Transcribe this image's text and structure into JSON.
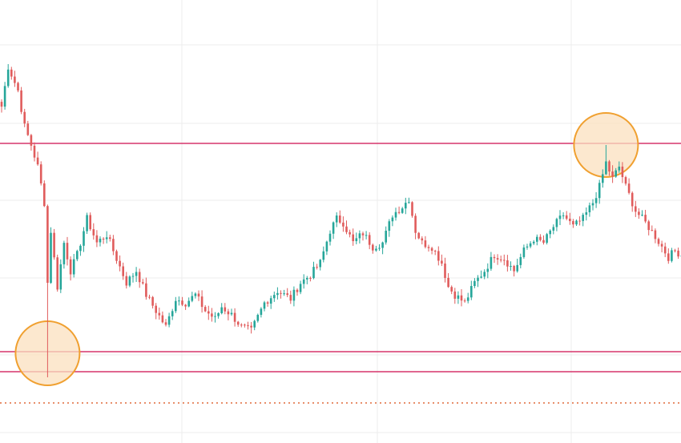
{
  "chart_data": {
    "type": "candlestick",
    "title": "",
    "xlabel": "",
    "ylabel": "",
    "grid": true,
    "ylim": [
      0,
      553
    ],
    "colors": {
      "up": "#26a69a",
      "down": "#e05c5c",
      "level_line": "#d6356b",
      "dotted_line": "#e06a3a",
      "highlight_fill": "#fbe0bf",
      "highlight_stroke": "#f0a030",
      "grid": "#ececec"
    },
    "levels": [
      {
        "name": "resistance",
        "value": 374,
        "style": "solid"
      },
      {
        "name": "support-upper",
        "value": 114,
        "style": "solid"
      },
      {
        "name": "support-lower",
        "value": 89,
        "style": "solid"
      },
      {
        "name": "reference",
        "value": 50,
        "style": "dotted"
      }
    ],
    "highlights": [
      {
        "name": "low-touch",
        "index": 14,
        "value": 82
      },
      {
        "name": "high-touch",
        "index": 184,
        "value": 372
      }
    ],
    "anchors": [
      [
        0,
        420
      ],
      [
        2,
        470
      ],
      [
        5,
        440
      ],
      [
        7,
        395
      ],
      [
        9,
        372
      ],
      [
        11,
        345
      ],
      [
        13,
        300
      ],
      [
        14,
        200
      ],
      [
        15,
        265
      ],
      [
        17,
        195
      ],
      [
        19,
        250
      ],
      [
        21,
        215
      ],
      [
        23,
        235
      ],
      [
        26,
        280
      ],
      [
        29,
        250
      ],
      [
        32,
        260
      ],
      [
        35,
        230
      ],
      [
        38,
        200
      ],
      [
        41,
        215
      ],
      [
        44,
        185
      ],
      [
        47,
        165
      ],
      [
        50,
        145
      ],
      [
        53,
        180
      ],
      [
        56,
        175
      ],
      [
        59,
        185
      ],
      [
        62,
        165
      ],
      [
        65,
        155
      ],
      [
        67,
        170
      ],
      [
        70,
        160
      ],
      [
        73,
        145
      ],
      [
        76,
        140
      ],
      [
        80,
        175
      ],
      [
        84,
        190
      ],
      [
        88,
        180
      ],
      [
        91,
        200
      ],
      [
        94,
        210
      ],
      [
        97,
        225
      ],
      [
        100,
        265
      ],
      [
        102,
        280
      ],
      [
        104,
        275
      ],
      [
        107,
        250
      ],
      [
        110,
        262
      ],
      [
        113,
        245
      ],
      [
        116,
        250
      ],
      [
        119,
        285
      ],
      [
        122,
        295
      ],
      [
        124,
        305
      ],
      [
        126,
        265
      ],
      [
        128,
        250
      ],
      [
        131,
        245
      ],
      [
        134,
        225
      ],
      [
        136,
        195
      ],
      [
        138,
        185
      ],
      [
        141,
        175
      ],
      [
        144,
        200
      ],
      [
        147,
        215
      ],
      [
        150,
        235
      ],
      [
        153,
        230
      ],
      [
        156,
        215
      ],
      [
        159,
        240
      ],
      [
        162,
        255
      ],
      [
        165,
        250
      ],
      [
        168,
        270
      ],
      [
        171,
        285
      ],
      [
        174,
        270
      ],
      [
        177,
        280
      ],
      [
        180,
        300
      ],
      [
        182,
        320
      ],
      [
        184,
        350
      ],
      [
        186,
        330
      ],
      [
        188,
        345
      ],
      [
        190,
        320
      ],
      [
        193,
        290
      ],
      [
        196,
        275
      ],
      [
        199,
        258
      ],
      [
        201,
        245
      ],
      [
        203,
        232
      ],
      [
        205,
        240
      ],
      [
        207,
        235
      ],
      [
        209,
        190
      ],
      [
        211,
        185
      ]
    ]
  }
}
